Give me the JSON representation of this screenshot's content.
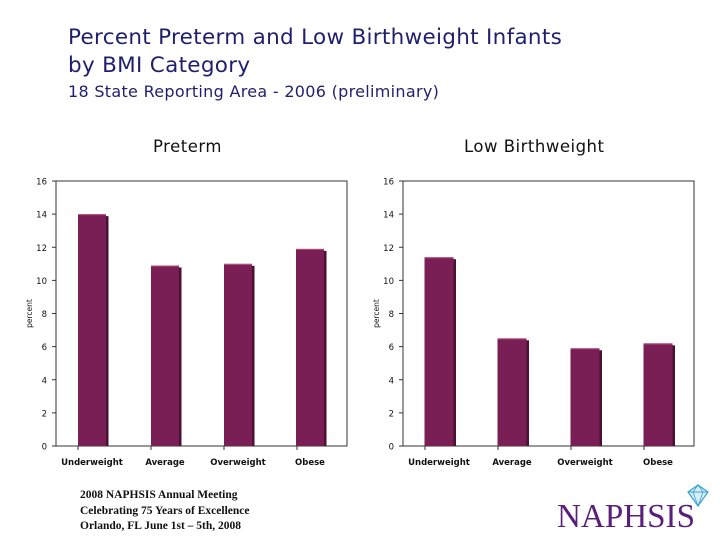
{
  "slide": {
    "title_line1": "Percent Preterm and Low Birthweight Infants",
    "title_line2": "by BMI Category",
    "subtitle": "18 State Reporting Area - 2006 (preliminary)",
    "footer_line1": "2008 NAPHSIS Annual Meeting",
    "footer_line2": "Celebrating 75 Years of Excellence",
    "footer_line3": "Orlando, FL      June 1st – 5th, 2008",
    "logo_text": "NAPHSIS"
  },
  "chart_data": [
    {
      "type": "bar",
      "title": "Preterm",
      "ylabel": "percent",
      "categories": [
        "Underweight",
        "Average",
        "Overweight",
        "Obese"
      ],
      "values": [
        14.0,
        10.9,
        11.0,
        11.9
      ],
      "ylim": [
        0,
        16
      ],
      "yticks": [
        0,
        2,
        4,
        6,
        8,
        10,
        12,
        14,
        16
      ],
      "bar_color": "#7a1f55",
      "grid": false
    },
    {
      "type": "bar",
      "title": "Low Birthweight",
      "ylabel": "percent",
      "categories": [
        "Underweight",
        "Average",
        "Overweight",
        "Obese"
      ],
      "values": [
        11.4,
        6.5,
        5.9,
        6.2
      ],
      "ylim": [
        0,
        16
      ],
      "yticks": [
        0,
        2,
        4,
        6,
        8,
        10,
        12,
        14,
        16
      ],
      "bar_color": "#7a1f55",
      "grid": false
    }
  ]
}
